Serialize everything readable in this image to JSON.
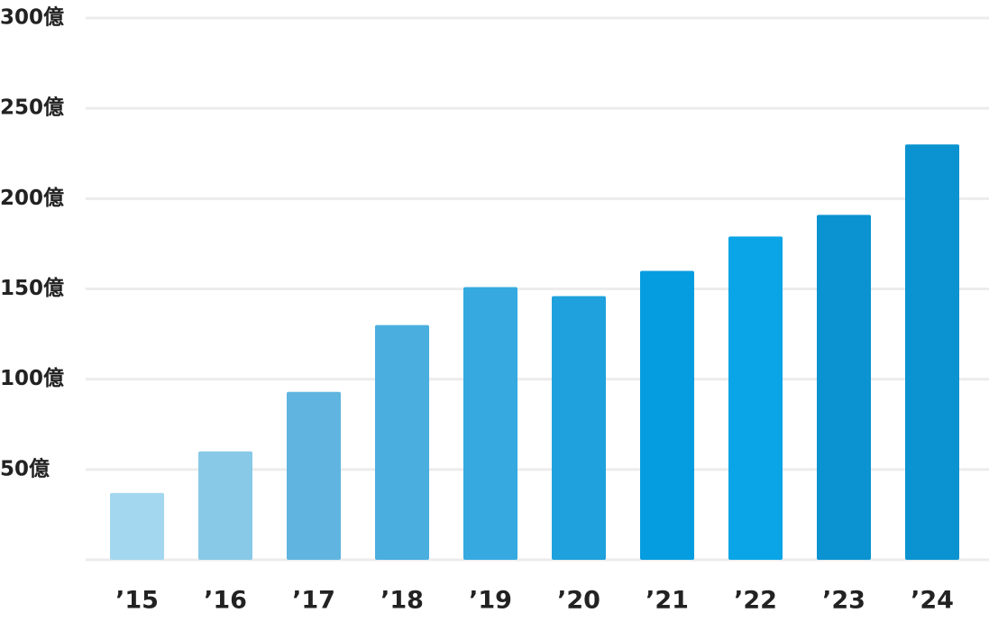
{
  "chart_data": {
    "type": "bar",
    "categories": [
      "’15",
      "’16",
      "’17",
      "’18",
      "’19",
      "’20",
      "’21",
      "’22",
      "’23",
      "’24"
    ],
    "values": [
      37,
      60,
      93,
      130,
      151,
      146,
      160,
      179,
      191,
      230
    ],
    "colors": [
      "#a3d7ef",
      "#87c9e7",
      "#5fb5df",
      "#4aaedf",
      "#35a9e0",
      "#1ea1dc",
      "#069de0",
      "#0aa5e6",
      "#0a93d0",
      "#0a93d0"
    ],
    "ylim": [
      0,
      300
    ],
    "yticks": [
      {
        "value": 50,
        "label": "50億"
      },
      {
        "value": 100,
        "label": "100億"
      },
      {
        "value": 150,
        "label": "150億"
      },
      {
        "value": 200,
        "label": "200億"
      },
      {
        "value": 250,
        "label": "250億"
      },
      {
        "value": 300,
        "label": "300億"
      }
    ],
    "grid": true
  }
}
